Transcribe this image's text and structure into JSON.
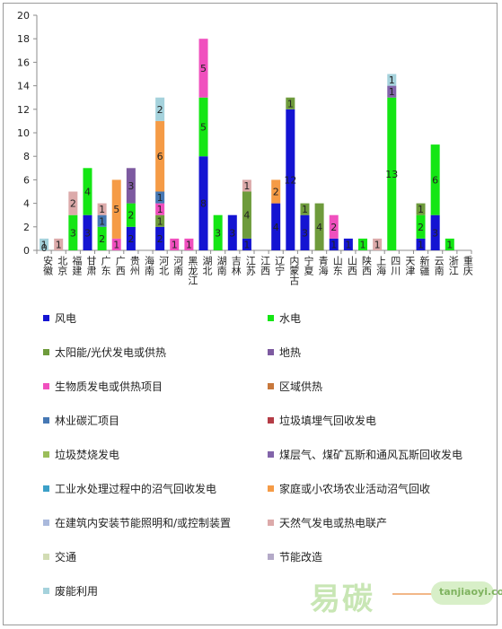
{
  "chart_data": {
    "type": "bar",
    "stacked": true,
    "ylim": [
      0,
      20
    ],
    "yticks": [
      0,
      2,
      4,
      6,
      8,
      10,
      12,
      14,
      16,
      18,
      20
    ],
    "grid": false,
    "legend_placement": "bottom",
    "categories": [
      "安徽",
      "北京",
      "福建",
      "甘肃",
      "广东",
      "广西",
      "贵州",
      "海南",
      "河北",
      "河南",
      "黑龙江",
      "湖北",
      "湖南",
      "吉林",
      "江苏",
      "江西",
      "辽宁",
      "内蒙古",
      "宁夏",
      "青海",
      "山东",
      "山西",
      "陕西",
      "上海",
      "四川",
      "天津",
      "新疆",
      "云南",
      "浙江",
      "重庆"
    ],
    "series": [
      {
        "name": "风电",
        "color": "#1414d2",
        "values": [
          0,
          0,
          0,
          3,
          0,
          0,
          2,
          0,
          2,
          0,
          0,
          8,
          0,
          3,
          1,
          0,
          4,
          12,
          3,
          0,
          1,
          1,
          0,
          0,
          0,
          0,
          1,
          3,
          0,
          0
        ],
        "labels": [
          null,
          null,
          null,
          "3",
          null,
          null,
          "2",
          null,
          "2",
          null,
          null,
          "8",
          null,
          "3",
          "1",
          null,
          "4",
          "12",
          "3",
          null,
          "1",
          "1",
          null,
          null,
          null,
          null,
          "1",
          "3",
          null,
          null
        ]
      },
      {
        "name": "水电",
        "color": "#14e614",
        "values": [
          0,
          0,
          3,
          4,
          2,
          0,
          2,
          0,
          0,
          0,
          0,
          5,
          3,
          0,
          0,
          0,
          0,
          0,
          0,
          0,
          0,
          0,
          1,
          0,
          13,
          0,
          2,
          6,
          1,
          0
        ],
        "labels": [
          null,
          null,
          "3",
          "4",
          "2",
          null,
          "2",
          null,
          null,
          null,
          null,
          "5",
          "3",
          null,
          null,
          null,
          null,
          null,
          null,
          null,
          null,
          null,
          "1",
          null,
          "13",
          null,
          "2",
          "6",
          "1",
          null
        ]
      },
      {
        "name": "太阳能/光伏发电或供热",
        "color": "#6e9b3c",
        "values": [
          0,
          0,
          0,
          0,
          0,
          0,
          0,
          0,
          1,
          0,
          0,
          0,
          0,
          0,
          4,
          0,
          0,
          1,
          1,
          4,
          0,
          0,
          0,
          0,
          0,
          0,
          1,
          0,
          0,
          0
        ],
        "labels": [
          null,
          null,
          null,
          null,
          null,
          null,
          null,
          null,
          "1",
          null,
          null,
          null,
          null,
          null,
          "4",
          null,
          null,
          "1",
          "1",
          "4",
          null,
          null,
          null,
          null,
          null,
          null,
          "1",
          null,
          null,
          null
        ]
      },
      {
        "name": "地热",
        "color": "#7d5aa0",
        "values": [
          0,
          0,
          0,
          0,
          0,
          0,
          3,
          0,
          0,
          0,
          0,
          0,
          0,
          0,
          0,
          0,
          0,
          0,
          0,
          0,
          0,
          0,
          0,
          0,
          0,
          0,
          0,
          0,
          0,
          0
        ],
        "labels": [
          null,
          null,
          null,
          null,
          null,
          null,
          "3",
          null,
          null,
          null,
          null,
          null,
          null,
          null,
          null,
          null,
          null,
          null,
          null,
          null,
          null,
          null,
          null,
          null,
          null,
          null,
          null,
          null,
          null,
          null
        ]
      },
      {
        "name": "生物质发电或供热项目",
        "color": "#f050be",
        "values": [
          0,
          0,
          0,
          0,
          0,
          1,
          0,
          0,
          1,
          1,
          1,
          5,
          0,
          0,
          0,
          0,
          0,
          0,
          0,
          0,
          2,
          0,
          0,
          0,
          0,
          0,
          0,
          0,
          0,
          0
        ],
        "labels": [
          null,
          null,
          null,
          null,
          null,
          "1",
          null,
          null,
          "1",
          "1",
          "1",
          "5",
          null,
          null,
          null,
          null,
          null,
          null,
          null,
          null,
          "2",
          null,
          null,
          null,
          null,
          null,
          null,
          null,
          null,
          null
        ]
      },
      {
        "name": "区域供热",
        "color": "#c8783c",
        "values": [
          0,
          0,
          0,
          0,
          0,
          0,
          0,
          0,
          0,
          0,
          0,
          0,
          0,
          0,
          0,
          0,
          0,
          0,
          0,
          0,
          0,
          0,
          0,
          0,
          0,
          0,
          0,
          0,
          0,
          0
        ],
        "labels": []
      },
      {
        "name": "林业碳汇项目",
        "color": "#4678b4",
        "values": [
          0,
          0,
          0,
          0,
          1,
          0,
          0,
          0,
          1,
          0,
          0,
          0,
          0,
          0,
          0,
          0,
          0,
          0,
          0,
          0,
          0,
          0,
          0,
          0,
          0,
          0,
          0,
          0,
          0,
          0
        ],
        "labels": [
          null,
          null,
          null,
          null,
          "1",
          null,
          null,
          null,
          "1",
          null,
          null,
          null,
          null,
          null,
          null,
          null,
          null,
          null,
          null,
          null,
          null,
          null,
          null,
          null,
          null,
          null,
          null,
          null,
          null,
          null
        ]
      },
      {
        "name": "垃圾填埋气回收发电",
        "color": "#b43c46",
        "values": [
          0,
          0,
          0,
          0,
          0,
          0,
          0,
          0,
          0,
          0,
          0,
          0,
          0,
          0,
          0,
          0,
          0,
          0,
          0,
          0,
          0,
          0,
          0,
          0,
          0,
          0,
          0,
          0,
          0,
          0
        ],
        "labels": []
      },
      {
        "name": "垃圾焚烧发电",
        "color": "#9bbe5a",
        "values": [
          0,
          0,
          0,
          0,
          0,
          0,
          0,
          0,
          0,
          0,
          0,
          0,
          0,
          0,
          0,
          0,
          0,
          0,
          0,
          0,
          0,
          0,
          0,
          0,
          0,
          0,
          0,
          0,
          0,
          0
        ],
        "labels": []
      },
      {
        "name": "煤层气、煤矿瓦斯和通风瓦斯回收发电",
        "color": "#8264aa",
        "values": [
          0,
          0,
          0,
          0,
          0,
          0,
          0,
          0,
          0,
          0,
          0,
          0,
          0,
          0,
          0,
          0,
          0,
          0,
          0,
          0,
          0,
          0,
          0,
          0,
          1,
          0,
          0,
          0,
          0,
          0
        ],
        "labels": [
          null,
          null,
          null,
          null,
          null,
          null,
          null,
          null,
          null,
          null,
          null,
          null,
          null,
          null,
          null,
          null,
          null,
          null,
          null,
          null,
          null,
          null,
          null,
          null,
          "1",
          null,
          null,
          null,
          null,
          null
        ]
      },
      {
        "name": "工业水处理过程中的沼气回收发电",
        "color": "#3ca0c8",
        "values": [
          0,
          0,
          0,
          0,
          0,
          0,
          0,
          0,
          0,
          0,
          0,
          0,
          0,
          0,
          0,
          0,
          0,
          0,
          0,
          0,
          0,
          0,
          0,
          0,
          0,
          0,
          0,
          0,
          0,
          0
        ],
        "labels": []
      },
      {
        "name": "家庭或小农场农业活动沼气回收",
        "color": "#f59b46",
        "values": [
          0,
          0,
          0,
          0,
          0,
          5,
          0,
          0,
          6,
          0,
          0,
          0,
          0,
          0,
          0,
          0,
          2,
          0,
          0,
          0,
          0,
          0,
          0,
          0,
          0,
          0,
          0,
          0,
          0,
          0
        ],
        "labels": [
          null,
          null,
          null,
          null,
          null,
          "5",
          null,
          null,
          "6",
          null,
          null,
          null,
          null,
          null,
          null,
          null,
          "2",
          null,
          null,
          null,
          null,
          null,
          null,
          null,
          null,
          null,
          null,
          null,
          null,
          null
        ]
      },
      {
        "name": "在建筑内安装节能照明和/或控制装置",
        "color": "#aab9dc",
        "values": [
          0,
          0,
          0,
          0,
          0,
          0,
          0,
          0,
          0,
          0,
          0,
          0,
          0,
          0,
          0,
          0,
          0,
          0,
          0,
          0,
          0,
          0,
          0,
          0,
          0,
          0,
          0,
          0,
          0,
          0
        ],
        "labels": []
      },
      {
        "name": "天然气发电或热电联产",
        "color": "#dcaaaa",
        "values": [
          0,
          1,
          2,
          0,
          1,
          0,
          0,
          0,
          0,
          0,
          0,
          0,
          0,
          0,
          1,
          0,
          0,
          0,
          0,
          0,
          0,
          0,
          0,
          1,
          0,
          0,
          0,
          0,
          0,
          0
        ],
        "labels": [
          null,
          "1",
          "2",
          null,
          "1",
          null,
          null,
          null,
          null,
          null,
          null,
          null,
          null,
          null,
          "1",
          null,
          null,
          null,
          null,
          null,
          null,
          null,
          null,
          "1",
          null,
          null,
          null,
          null,
          null,
          null
        ]
      },
      {
        "name": "交通",
        "color": "#d2dcb4",
        "values": [
          0,
          0,
          0,
          0,
          0,
          0,
          0,
          0,
          0,
          0,
          0,
          0,
          0,
          0,
          0,
          0,
          0,
          0,
          0,
          0,
          0,
          0,
          0,
          0,
          0,
          0,
          0,
          0,
          0,
          0
        ],
        "labels": []
      },
      {
        "name": "节能改造",
        "color": "#b4aac8",
        "values": [
          0,
          0,
          0,
          0,
          0,
          0,
          0,
          0,
          0,
          0,
          0,
          0,
          0,
          0,
          0,
          0,
          0,
          0,
          0,
          0,
          0,
          0,
          0,
          0,
          0,
          0,
          0,
          0,
          0,
          0
        ],
        "labels": []
      },
      {
        "name": "废能利用",
        "color": "#a5d2dc",
        "values": [
          1,
          0,
          0,
          0,
          0,
          0,
          0,
          0,
          2,
          0,
          0,
          0,
          0,
          0,
          0,
          0,
          0,
          0,
          0,
          0,
          0,
          0,
          0,
          0,
          1,
          0,
          0,
          0,
          0,
          0
        ],
        "labels": [
          "1",
          null,
          null,
          null,
          null,
          null,
          null,
          null,
          "2",
          null,
          null,
          null,
          null,
          null,
          null,
          null,
          null,
          null,
          null,
          null,
          null,
          null,
          null,
          null,
          "1",
          null,
          null,
          null,
          null,
          null
        ]
      }
    ]
  },
  "watermark": {
    "cn": "易碳",
    "en": "tanjiaoyi",
    "sub": ".com"
  }
}
